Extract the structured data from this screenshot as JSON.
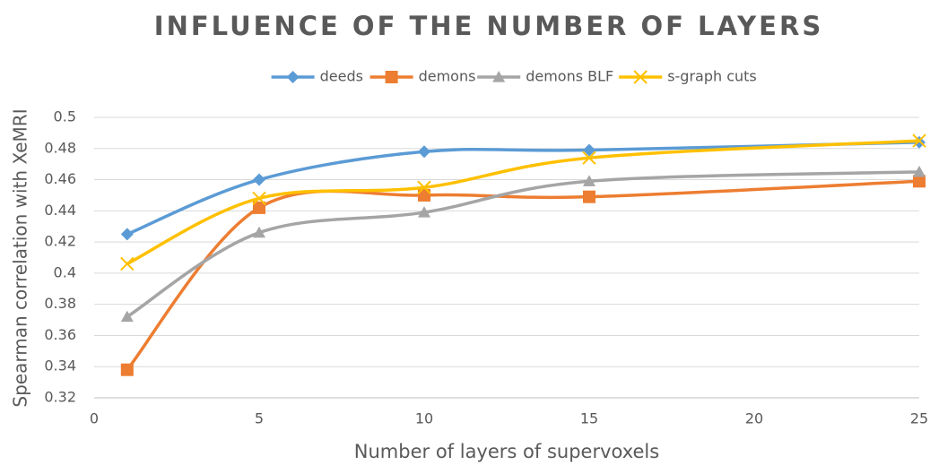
{
  "chart_data": {
    "type": "line",
    "title": "INFLUENCE OF THE NUMBER OF LAYERS",
    "x_label": "Number of layers of supervoxels",
    "y_label": "Spearman correlation with XeMRI",
    "x": [
      1,
      5,
      10,
      15,
      25
    ],
    "series": [
      {
        "name": "deeds",
        "color": "#5b9bd5",
        "marker": "diamond",
        "values": [
          0.425,
          0.46,
          0.478,
          0.479,
          0.484
        ]
      },
      {
        "name": "demons",
        "color": "#ed7d31",
        "marker": "square",
        "values": [
          0.338,
          0.442,
          0.45,
          0.449,
          0.459
        ]
      },
      {
        "name": "demons BLF",
        "color": "#a5a5a5",
        "marker": "triangle",
        "values": [
          0.372,
          0.426,
          0.439,
          0.459,
          0.465
        ]
      },
      {
        "name": "s-graph cuts",
        "color": "#ffc000",
        "marker": "x",
        "values": [
          0.406,
          0.448,
          0.455,
          0.474,
          0.485
        ]
      }
    ],
    "xlim": [
      0,
      25
    ],
    "xticks": [
      0,
      5,
      10,
      15,
      20,
      25
    ],
    "ylim": [
      0.32,
      0.5
    ],
    "yticks": [
      0.32,
      0.34,
      0.36,
      0.38,
      0.4,
      0.42,
      0.44,
      0.46,
      0.48,
      0.5
    ],
    "grid": true,
    "smooth": true,
    "legend": "top"
  }
}
